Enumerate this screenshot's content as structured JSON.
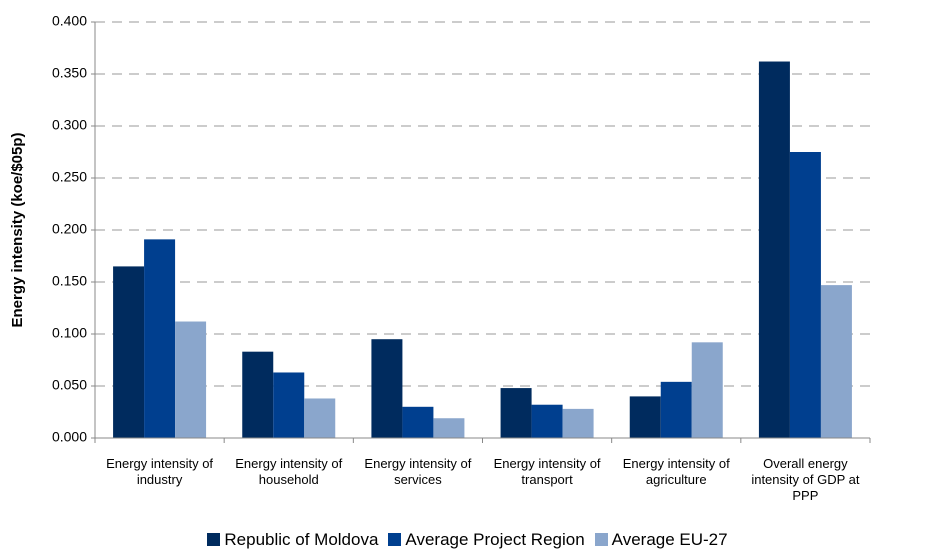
{
  "chart_data": {
    "type": "bar",
    "ylabel": "Energy intensity (koe/$05p)",
    "categories": [
      "Energy intensity of industry",
      "Energy intensity of household",
      "Energy intensity of services",
      "Energy intensity of transport",
      "Energy intensity of agriculture",
      "Overall energy intensity of GDP at PPP"
    ],
    "series": [
      {
        "name": "Republic of Moldova",
        "color": "#002b5e",
        "values": [
          0.165,
          0.083,
          0.095,
          0.048,
          0.04,
          0.362
        ]
      },
      {
        "name": "Average Project Region",
        "color": "#003f8f",
        "values": [
          0.191,
          0.063,
          0.03,
          0.032,
          0.054,
          0.275
        ]
      },
      {
        "name": "Average EU-27",
        "color": "#8aa6cc",
        "values": [
          0.112,
          0.038,
          0.019,
          0.028,
          0.092,
          0.147
        ]
      }
    ],
    "ylim": [
      0,
      0.4
    ],
    "yticks": [
      {
        "value": 0,
        "label": "0.000"
      },
      {
        "value": 0.05,
        "label": "0.050"
      },
      {
        "value": 0.1,
        "label": "0.100"
      },
      {
        "value": 0.15,
        "label": "0.150"
      },
      {
        "value": 0.2,
        "label": "0.200"
      },
      {
        "value": 0.25,
        "label": "0.250"
      },
      {
        "value": 0.3,
        "label": "0.300"
      },
      {
        "value": 0.35,
        "label": "0.350"
      },
      {
        "value": 0.4,
        "label": "0.400"
      }
    ],
    "grid": true,
    "legend": "bottom"
  }
}
